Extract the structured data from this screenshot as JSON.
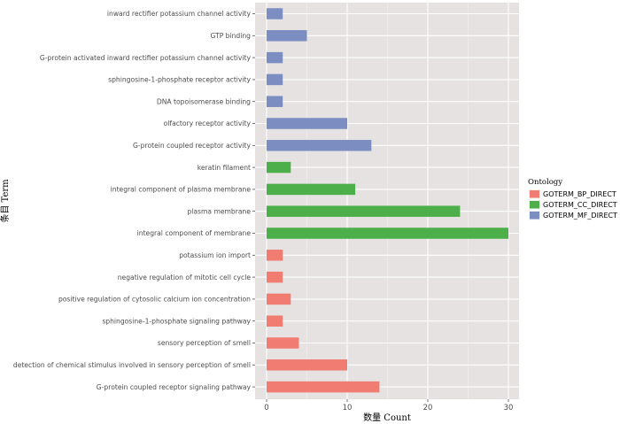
{
  "chart_data": {
    "type": "bar",
    "orientation": "horizontal",
    "xlabel": "数量 Count",
    "ylabel": "条目 Term",
    "xlim": [
      0,
      30
    ],
    "xticks": [
      0,
      10,
      20,
      30
    ],
    "grid": true,
    "legend": {
      "title": "Ontology",
      "position": "right",
      "entries": [
        {
          "name": "GOTERM_BP_DIRECT",
          "color": "#F07C72"
        },
        {
          "name": "GOTERM_CC_DIRECT",
          "color": "#4DAF4A"
        },
        {
          "name": "GOTERM_MF_DIRECT",
          "color": "#7B8DC1"
        }
      ]
    },
    "bars": [
      {
        "term": "inward rectifier potassium channel activity",
        "value": 2,
        "ontology": "GOTERM_MF_DIRECT"
      },
      {
        "term": "GTP binding",
        "value": 5,
        "ontology": "GOTERM_MF_DIRECT"
      },
      {
        "term": "G-protein activated inward rectifier potassium channel activity",
        "value": 2,
        "ontology": "GOTERM_MF_DIRECT"
      },
      {
        "term": "sphingosine-1-phosphate receptor activity",
        "value": 2,
        "ontology": "GOTERM_MF_DIRECT"
      },
      {
        "term": "DNA topoisomerase binding",
        "value": 2,
        "ontology": "GOTERM_MF_DIRECT"
      },
      {
        "term": "olfactory receptor activity",
        "value": 10,
        "ontology": "GOTERM_MF_DIRECT"
      },
      {
        "term": "G-protein coupled receptor activity",
        "value": 13,
        "ontology": "GOTERM_MF_DIRECT"
      },
      {
        "term": "keratin filament",
        "value": 3,
        "ontology": "GOTERM_CC_DIRECT"
      },
      {
        "term": "integral component of plasma membrane",
        "value": 11,
        "ontology": "GOTERM_CC_DIRECT"
      },
      {
        "term": "plasma membrane",
        "value": 24,
        "ontology": "GOTERM_CC_DIRECT"
      },
      {
        "term": "integral component of membrane",
        "value": 30,
        "ontology": "GOTERM_CC_DIRECT"
      },
      {
        "term": "potassium ion import",
        "value": 2,
        "ontology": "GOTERM_BP_DIRECT"
      },
      {
        "term": "negative regulation of mitotic cell cycle",
        "value": 2,
        "ontology": "GOTERM_BP_DIRECT"
      },
      {
        "term": "positive regulation of cytosolic calcium ion concentration",
        "value": 3,
        "ontology": "GOTERM_BP_DIRECT"
      },
      {
        "term": "sphingosine-1-phosphate signaling pathway",
        "value": 2,
        "ontology": "GOTERM_BP_DIRECT"
      },
      {
        "term": "sensory perception of smell",
        "value": 4,
        "ontology": "GOTERM_BP_DIRECT"
      },
      {
        "term": "detection of chemical stimulus involved in sensory perception of smell",
        "value": 10,
        "ontology": "GOTERM_BP_DIRECT"
      },
      {
        "term": "G-protein coupled receptor signaling pathway",
        "value": 14,
        "ontology": "GOTERM_BP_DIRECT"
      }
    ]
  }
}
